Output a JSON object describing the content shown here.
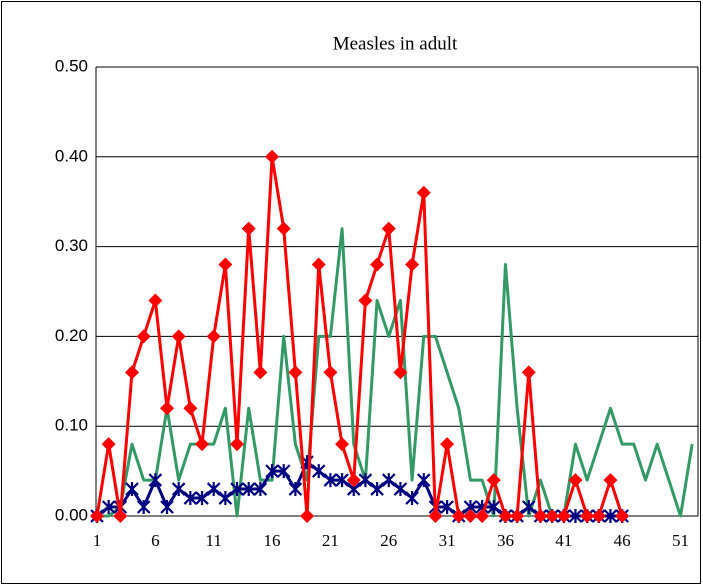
{
  "chart_data": {
    "type": "line",
    "title": "Measles in adult",
    "categories": [
      1,
      null,
      null,
      null,
      null,
      6,
      null,
      null,
      null,
      null,
      11,
      null,
      null,
      null,
      null,
      16,
      null,
      null,
      null,
      null,
      21,
      null,
      null,
      null,
      null,
      26,
      null,
      null,
      null,
      null,
      31,
      null,
      null,
      null,
      null,
      36,
      null,
      null,
      null,
      null,
      41,
      null,
      null,
      null,
      null,
      46,
      null,
      null,
      null,
      null,
      51,
      null
    ],
    "ylim": [
      0,
      0.5
    ],
    "yticks": [
      {
        "value": 0,
        "label": "0.00"
      },
      {
        "value": 0.1,
        "label": "0.10"
      },
      {
        "value": 0.2,
        "label": "0.20"
      },
      {
        "value": 0.3,
        "label": "0.30"
      },
      {
        "value": 0.4,
        "label": "0.40"
      },
      {
        "value": 0.5,
        "label": "0.50"
      }
    ],
    "grid": true,
    "series": [
      {
        "color": "#339966",
        "marker": "none",
        "values": [
          0,
          0,
          0.01,
          0.08,
          0.04,
          0.04,
          0.12,
          0.04,
          0.08,
          0.08,
          0.08,
          0.12,
          0,
          0.12,
          0.04,
          0.04,
          0.2,
          0.08,
          0.04,
          0.2,
          0.2,
          0.32,
          0.08,
          0.04,
          0.24,
          0.2,
          0.24,
          0.04,
          0.2,
          0.2,
          0.16,
          0.12,
          0.04,
          0.04,
          0,
          0.28,
          0.12,
          0,
          0.04,
          0,
          0,
          0.08,
          0.04,
          0.08,
          0.12,
          0.08,
          0.08,
          0.04,
          0.08,
          0.04,
          0,
          0.08
        ]
      },
      {
        "color": "#000080",
        "marker": "asterisk",
        "values": [
          0,
          0.01,
          0.01,
          0.03,
          0.01,
          0.04,
          0.01,
          0.03,
          0.02,
          0.02,
          0.03,
          0.02,
          0.03,
          0.03,
          0.03,
          0.05,
          0.05,
          0.03,
          0.06,
          0.05,
          0.04,
          0.04,
          0.03,
          0.04,
          0.03,
          0.04,
          0.03,
          0.02,
          0.04,
          0.01,
          0.01,
          0,
          0.01,
          0.01,
          0.01,
          0,
          0,
          0.01,
          0,
          0,
          0,
          0,
          0,
          0,
          0,
          0,
          null,
          null,
          null,
          null,
          null,
          null
        ]
      },
      {
        "color": "#ff0000",
        "marker": "diamond",
        "values": [
          0,
          0.08,
          0,
          0.16,
          0.2,
          0.24,
          0.12,
          0.2,
          0.12,
          0.08,
          0.2,
          0.28,
          0.08,
          0.32,
          0.16,
          0.4,
          0.32,
          0.16,
          0,
          0.28,
          0.16,
          0.08,
          0.04,
          0.24,
          0.28,
          0.32,
          0.16,
          0.28,
          0.36,
          0,
          0.08,
          0,
          0,
          0,
          0.04,
          0,
          0,
          0.16,
          0,
          0,
          0,
          0.04,
          0,
          0,
          0.04,
          0,
          null,
          null,
          null,
          null,
          null,
          null
        ]
      }
    ]
  }
}
